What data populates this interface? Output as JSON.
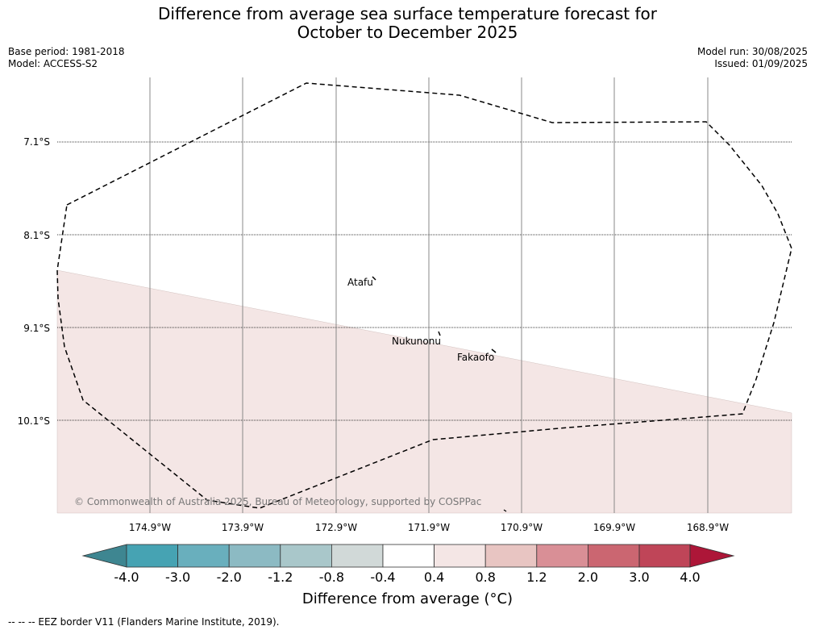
{
  "title": {
    "line1": "Difference from average sea surface temperature forecast for",
    "line2": "October to December 2025"
  },
  "meta": {
    "base_period": "Base period: 1981-2018",
    "model": "Model: ACCESS-S2",
    "model_run": "Model run: 30/08/2025",
    "issued": "Issued: 01/09/2025"
  },
  "map": {
    "lat_labels": [
      "7.1°S",
      "8.1°S",
      "9.1°S",
      "10.1°S"
    ],
    "lon_labels": [
      "174.9°W",
      "173.9°W",
      "172.9°W",
      "171.9°W",
      "170.9°W",
      "169.9°W",
      "168.9°W"
    ],
    "places": [
      "Atafu",
      "Nukunonu",
      "Fakaofo"
    ],
    "shaded_category": "0.4 to 0.8",
    "shade_color": "#f4e6e5",
    "copyright": "© Commonwealth of Australia 2025, Bureau of Meteorology, supported by COSPPac"
  },
  "colorbar": {
    "ticks": [
      "-4.0",
      "-3.0",
      "-2.0",
      "-1.2",
      "-0.8",
      "-0.4",
      "0.4",
      "0.8",
      "1.2",
      "2.0",
      "3.0",
      "4.0"
    ],
    "colors": [
      "#3e8691",
      "#46a3b3",
      "#69afbd",
      "#8cbac3",
      "#a9c7ca",
      "#d1d9d8",
      "#ffffff",
      "#f4e6e5",
      "#e8c5c2",
      "#d98f96",
      "#cb6671",
      "#bf4558",
      "#ad1638"
    ],
    "title": "Difference from average (°C)"
  },
  "legend_note": "--  --  -- EEZ border V11 (Flanders Marine Institute, 2019)."
}
